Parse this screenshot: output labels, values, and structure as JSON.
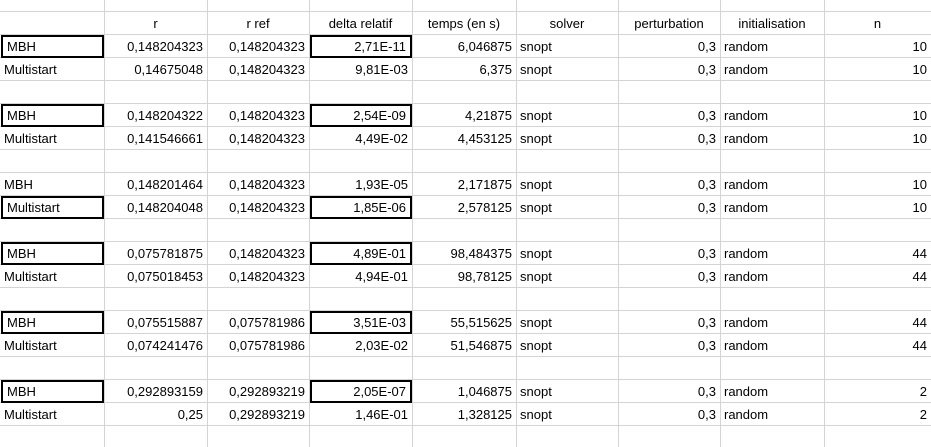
{
  "columns": [
    "",
    "r",
    "r ref",
    "delta relatif",
    "temps (en s)",
    "solver",
    "perturbation",
    "initialisation",
    "n"
  ],
  "rows": [
    {
      "cells": [
        "MBH",
        "0,148204323",
        "0,148204323",
        "2,71E-11",
        "6,046875",
        "snopt",
        "0,3",
        "random",
        "10"
      ],
      "boxed": [
        0,
        3
      ]
    },
    {
      "cells": [
        "Multistart",
        "0,14675048",
        "0,148204323",
        "9,81E-03",
        "6,375",
        "snopt",
        "0,3",
        "random",
        "10"
      ],
      "boxed": []
    },
    {
      "cells": [
        "",
        "",
        "",
        "",
        "",
        "",
        "",
        "",
        ""
      ],
      "boxed": []
    },
    {
      "cells": [
        "MBH",
        "0,148204322",
        "0,148204323",
        "2,54E-09",
        "4,21875",
        "snopt",
        "0,3",
        "random",
        "10"
      ],
      "boxed": [
        0,
        3
      ]
    },
    {
      "cells": [
        "Multistart",
        "0,141546661",
        "0,148204323",
        "4,49E-02",
        "4,453125",
        "snopt",
        "0,3",
        "random",
        "10"
      ],
      "boxed": []
    },
    {
      "cells": [
        "",
        "",
        "",
        "",
        "",
        "",
        "",
        "",
        ""
      ],
      "boxed": []
    },
    {
      "cells": [
        "MBH",
        "0,148201464",
        "0,148204323",
        "1,93E-05",
        "2,171875",
        "snopt",
        "0,3",
        "random",
        "10"
      ],
      "boxed": []
    },
    {
      "cells": [
        "Multistart",
        "0,148204048",
        "0,148204323",
        "1,85E-06",
        "2,578125",
        "snopt",
        "0,3",
        "random",
        "10"
      ],
      "boxed": [
        0,
        3
      ]
    },
    {
      "cells": [
        "",
        "",
        "",
        "",
        "",
        "",
        "",
        "",
        ""
      ],
      "boxed": []
    },
    {
      "cells": [
        "MBH",
        "0,075781875",
        "0,148204323",
        "4,89E-01",
        "98,484375",
        "snopt",
        "0,3",
        "random",
        "44"
      ],
      "boxed": [
        0,
        3
      ]
    },
    {
      "cells": [
        "Multistart",
        "0,075018453",
        "0,148204323",
        "4,94E-01",
        "98,78125",
        "snopt",
        "0,3",
        "random",
        "44"
      ],
      "boxed": []
    },
    {
      "cells": [
        "",
        "",
        "",
        "",
        "",
        "",
        "",
        "",
        ""
      ],
      "boxed": []
    },
    {
      "cells": [
        "MBH",
        "0,075515887",
        "0,075781986",
        "3,51E-03",
        "55,515625",
        "snopt",
        "0,3",
        "random",
        "44"
      ],
      "boxed": [
        0,
        3
      ]
    },
    {
      "cells": [
        "Multistart",
        "0,074241476",
        "0,075781986",
        "2,03E-02",
        "51,546875",
        "snopt",
        "0,3",
        "random",
        "44"
      ],
      "boxed": []
    },
    {
      "cells": [
        "",
        "",
        "",
        "",
        "",
        "",
        "",
        "",
        ""
      ],
      "boxed": []
    },
    {
      "cells": [
        "MBH",
        "0,292893159",
        "0,292893219",
        "2,05E-07",
        "1,046875",
        "snopt",
        "0,3",
        "random",
        "2"
      ],
      "boxed": [
        0,
        3
      ]
    },
    {
      "cells": [
        "Multistart",
        "0,25",
        "0,292893219",
        "1,46E-01",
        "1,328125",
        "snopt",
        "0,3",
        "random",
        "2"
      ],
      "boxed": []
    }
  ]
}
